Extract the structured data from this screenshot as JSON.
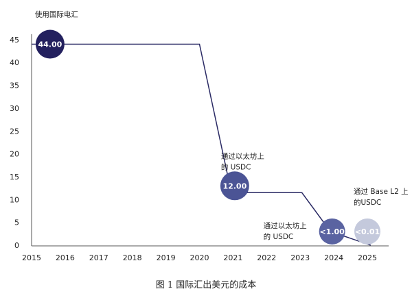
{
  "chart_data": {
    "type": "line",
    "title": "",
    "xlabel": "",
    "ylabel": "",
    "xlim": [
      2015,
      2025.6
    ],
    "ylim": [
      0,
      45
    ],
    "x_ticks": [
      "2015",
      "2016",
      "2017",
      "2018",
      "2019",
      "2020",
      "2021",
      "2022",
      "2023",
      "2024",
      "2025"
    ],
    "y_ticks": [
      "0",
      "5",
      "10",
      "15",
      "20",
      "25",
      "30",
      "35",
      "40",
      "45"
    ],
    "grid": false,
    "series": [
      {
        "name": "cost",
        "color": "#2a2a64",
        "points": [
          [
            2015,
            44
          ],
          [
            2020,
            44
          ],
          [
            2020.95,
            11.5
          ],
          [
            2023.05,
            11.5
          ],
          [
            2023.9,
            3
          ],
          [
            2025.1,
            0
          ]
        ]
      }
    ],
    "bubbles": [
      {
        "label": "44.00",
        "x": 2015.55,
        "y": 44,
        "color": "#23205e",
        "note": "使用国际电汇",
        "note2": ""
      },
      {
        "label": "12.00",
        "x": 2021.05,
        "y": 13,
        "color": "#4b5495",
        "note": "通过以太坊上",
        "note2": "的 USDC"
      },
      {
        "label": "<1.00",
        "x": 2023.95,
        "y": 3,
        "color": "#5a63a1",
        "note": "通过以太坊上",
        "note2": "的 USDC"
      },
      {
        "label": "<0.01",
        "x": 2025.0,
        "y": 3,
        "color": "#c4c9dc",
        "note": "通过 Base L2 上",
        "note2": "的USDC"
      }
    ]
  },
  "caption": "图 1 国际汇出美元的成本"
}
